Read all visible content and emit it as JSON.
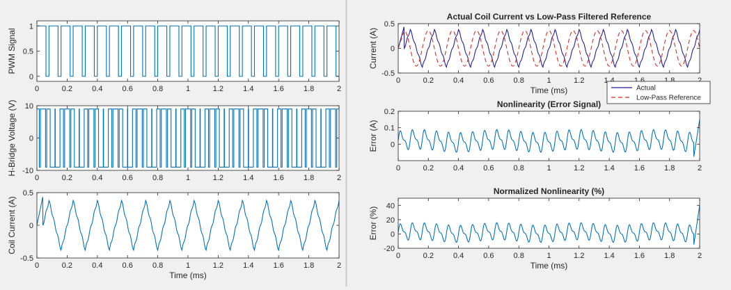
{
  "colors": {
    "background": "#f0f0f0",
    "axes_bg": "#ffffff",
    "axis": "#262626",
    "series_blue": "#0072bd",
    "actual_navy": "#1f1f9a",
    "reference_red": "#d92a2a",
    "divider": "#c8c8c8"
  },
  "chart_data": [
    {
      "type": "line",
      "title": "",
      "xlabel": "",
      "ylabel": "PWM Signal",
      "xlim": [
        0,
        2
      ],
      "ylim": [
        -0.1,
        1.1
      ],
      "xticks": [
        0,
        0.2,
        0.4,
        0.6,
        0.8,
        1,
        1.2,
        1.4,
        1.6,
        1.8,
        2
      ],
      "xtick_labels": [
        "0",
        "0.2",
        "0.4",
        "0.6",
        "0.8",
        "1",
        "1.2",
        "1.4",
        "1.6",
        "1.8",
        "2"
      ],
      "yticks": [
        0,
        0.5,
        1
      ],
      "ytick_labels": [
        "0",
        "0.5",
        "1"
      ],
      "grid": false,
      "signal": {
        "kind": "square",
        "period_ms": 0.08,
        "duty": 0.75,
        "low": 0,
        "high": 1
      }
    },
    {
      "type": "line",
      "title": "",
      "xlabel": "",
      "ylabel": "H-Bridge Voltage (V)",
      "xlim": [
        0,
        2
      ],
      "ylim": [
        -10,
        10
      ],
      "xticks": [
        0,
        0.2,
        0.4,
        0.6,
        0.8,
        1,
        1.2,
        1.4,
        1.6,
        1.8,
        2
      ],
      "xtick_labels": [
        "0",
        "0.2",
        "0.4",
        "0.6",
        "0.8",
        "1",
        "1.2",
        "1.4",
        "1.6",
        "1.8",
        "2"
      ],
      "yticks": [
        -10,
        0,
        10
      ],
      "ytick_labels": [
        "-10",
        "0",
        "10"
      ],
      "grid": false,
      "signal": {
        "kind": "bipolar_pwm",
        "carrier_period_ms": 0.04,
        "ref_period_ms": 0.16,
        "amplitude": 9
      }
    },
    {
      "type": "line",
      "title": "",
      "xlabel": "Time (ms)",
      "ylabel": "Coil Current (A)",
      "xlim": [
        0,
        2
      ],
      "ylim": [
        -0.5,
        0.5
      ],
      "xticks": [
        0,
        0.2,
        0.4,
        0.6,
        0.8,
        1,
        1.2,
        1.4,
        1.6,
        1.8,
        2
      ],
      "xtick_labels": [
        "0",
        "0.2",
        "0.4",
        "0.6",
        "0.8",
        "1",
        "1.2",
        "1.4",
        "1.6",
        "1.8",
        "2"
      ],
      "yticks": [
        -0.5,
        0,
        0.5
      ],
      "ytick_labels": [
        "-0.5",
        "0",
        "0.5"
      ],
      "grid": false,
      "signal": {
        "kind": "triangle_current",
        "period_ms": 0.16,
        "amplitude": 0.38,
        "phase_ms": 0.04,
        "start_peak": 0.45
      }
    },
    {
      "type": "line",
      "title": "Actual Coil Current vs Low-Pass Filtered Reference",
      "xlabel": "Time (ms)",
      "ylabel": "Current (A)",
      "xlim": [
        0,
        2
      ],
      "ylim": [
        -0.5,
        0.5
      ],
      "xticks": [
        0,
        0.2,
        0.4,
        0.6,
        0.8,
        1,
        1.2,
        1.4,
        1.6,
        1.8,
        2
      ],
      "xtick_labels": [
        "0",
        "0.2",
        "0.4",
        "0.6",
        "0.8",
        "1",
        "1.2",
        "1.4",
        "1.6",
        "1.8",
        "2"
      ],
      "yticks": [
        -0.5,
        0,
        0.5
      ],
      "ytick_labels": [
        "-0.5",
        "0",
        "0.5"
      ],
      "grid": false,
      "legend": {
        "placement": "bottom-right-outside",
        "entries": [
          "Actual",
          "Low-Pass Reference"
        ]
      },
      "series": [
        {
          "name": "Actual",
          "style": "solid",
          "signal": {
            "kind": "triangle_current",
            "period_ms": 0.16,
            "amplitude": 0.38,
            "phase_ms": 0.04,
            "start_peak": 0.45
          }
        },
        {
          "name": "Low-Pass Reference",
          "style": "dashed",
          "signal": {
            "kind": "sine",
            "period_ms": 0.16,
            "amplitude": 0.36,
            "phase_ms": 0.04
          }
        }
      ]
    },
    {
      "type": "line",
      "title": "Nonlinearity (Error Signal)",
      "xlabel": "",
      "ylabel": "Error (A)",
      "xlim": [
        0,
        2
      ],
      "ylim": [
        -0.1,
        0.2
      ],
      "xticks": [
        0,
        0.2,
        0.4,
        0.6,
        0.8,
        1,
        1.2,
        1.4,
        1.6,
        1.8,
        2
      ],
      "xtick_labels": [
        "0",
        "0.2",
        "0.4",
        "0.6",
        "0.8",
        "1",
        "1.2",
        "1.4",
        "1.6",
        "1.8",
        "2"
      ],
      "yticks": [
        0,
        0.1,
        0.2
      ],
      "ytick_labels": [
        "0",
        "0.1",
        "0.2"
      ],
      "grid": false,
      "signal": {
        "kind": "error",
        "period_ms": 0.16,
        "amplitude": 0.06,
        "offset": 0.02,
        "end_value": 0.15
      }
    },
    {
      "type": "line",
      "title": "Normalized Nonlinearity (%)",
      "xlabel": "Time (ms)",
      "ylabel": "Error (%)",
      "xlim": [
        0,
        2
      ],
      "ylim": [
        -20,
        50
      ],
      "xticks": [
        0,
        0.2,
        0.4,
        0.6,
        0.8,
        1,
        1.2,
        1.4,
        1.6,
        1.8,
        2
      ],
      "xtick_labels": [
        "0",
        "0.2",
        "0.4",
        "0.6",
        "0.8",
        "1",
        "1.2",
        "1.4",
        "1.6",
        "1.8",
        "2"
      ],
      "yticks": [
        -20,
        0,
        20,
        40
      ],
      "ytick_labels": [
        "-20",
        "0",
        "20",
        "40"
      ],
      "grid": false,
      "signal": {
        "kind": "error",
        "period_ms": 0.16,
        "amplitude": 12,
        "offset": 2,
        "end_value": 40
      }
    }
  ]
}
